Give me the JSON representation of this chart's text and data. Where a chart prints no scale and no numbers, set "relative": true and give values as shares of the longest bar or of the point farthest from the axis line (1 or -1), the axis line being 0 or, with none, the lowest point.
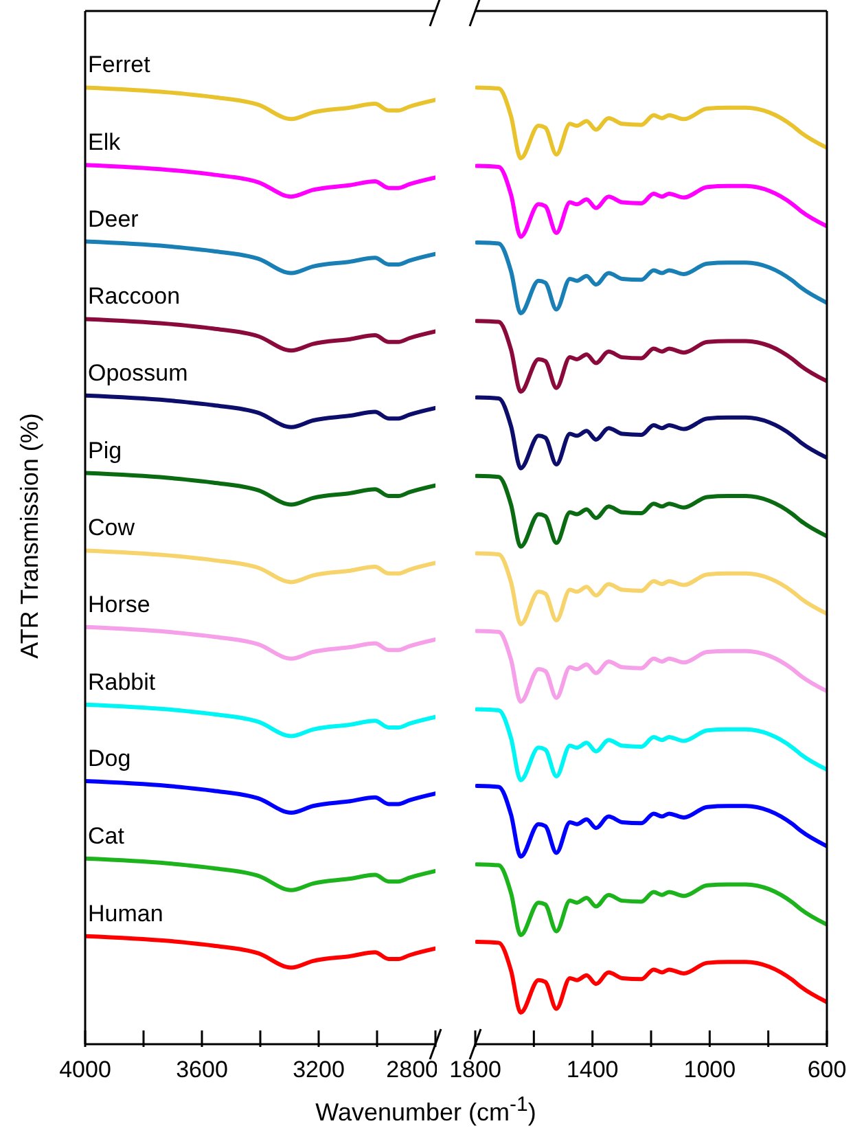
{
  "chart_data": [
    {
      "type": "line",
      "relative": true,
      "tick_labels": "x",
      "ylabel": "ATR Transmission (%)",
      "xlabel": "Wavenumber (cm$^{-1}$)",
      "xlim": [
        4000,
        2800
      ],
      "xticks": [
        4000,
        {
          "value": 3800,
          "label": null
        },
        3600,
        {
          "value": 3400,
          "label": null
        },
        3200,
        {
          "value": 3000,
          "label": null
        },
        2800
      ],
      "x": [
        4000,
        3718,
        3562,
        3407,
        3294,
        3219,
        3092,
        3007,
        2960,
        2927,
        2889,
        2800
      ],
      "series": [
        {
          "name": "Ferret",
          "color": "#e8c32e",
          "values": [
            1.0,
            0.995,
            0.99,
            0.982,
            0.967,
            0.974,
            0.979,
            0.983,
            0.976,
            0.976,
            0.98,
            0.987
          ]
        },
        {
          "name": "Elk",
          "color": "#ff00ff",
          "values": [
            0.919,
            0.914,
            0.909,
            0.901,
            0.886,
            0.893,
            0.898,
            0.902,
            0.895,
            0.895,
            0.899,
            0.906
          ]
        },
        {
          "name": "Deer",
          "color": "#1a7fb5",
          "values": [
            0.839,
            0.834,
            0.829,
            0.821,
            0.806,
            0.813,
            0.818,
            0.822,
            0.815,
            0.815,
            0.819,
            0.826
          ]
        },
        {
          "name": "Raccoon",
          "color": "#8b0a3c",
          "values": [
            0.758,
            0.753,
            0.748,
            0.74,
            0.725,
            0.732,
            0.737,
            0.741,
            0.734,
            0.734,
            0.738,
            0.745
          ]
        },
        {
          "name": "Opossum",
          "color": "#0d0d6b",
          "values": [
            0.678,
            0.673,
            0.668,
            0.66,
            0.645,
            0.652,
            0.657,
            0.661,
            0.654,
            0.654,
            0.658,
            0.665
          ]
        },
        {
          "name": "Pig",
          "color": "#0a6b12",
          "values": [
            0.597,
            0.592,
            0.587,
            0.579,
            0.564,
            0.571,
            0.576,
            0.58,
            0.573,
            0.573,
            0.577,
            0.584
          ]
        },
        {
          "name": "Cow",
          "color": "#f7d36b",
          "values": [
            0.516,
            0.511,
            0.506,
            0.498,
            0.483,
            0.49,
            0.495,
            0.499,
            0.492,
            0.492,
            0.496,
            0.503
          ]
        },
        {
          "name": "Horse",
          "color": "#f5a0e8",
          "values": [
            0.436,
            0.431,
            0.426,
            0.418,
            0.403,
            0.41,
            0.415,
            0.419,
            0.412,
            0.412,
            0.416,
            0.423
          ]
        },
        {
          "name": "Rabbit",
          "color": "#00f5f5",
          "values": [
            0.355,
            0.35,
            0.345,
            0.337,
            0.322,
            0.329,
            0.334,
            0.338,
            0.331,
            0.331,
            0.335,
            0.342
          ]
        },
        {
          "name": "Dog",
          "color": "#0000ff",
          "values": [
            0.275,
            0.27,
            0.265,
            0.257,
            0.242,
            0.249,
            0.254,
            0.258,
            0.251,
            0.251,
            0.255,
            0.262
          ]
        },
        {
          "name": "Cat",
          "color": "#1db31d",
          "values": [
            0.194,
            0.189,
            0.184,
            0.176,
            0.161,
            0.168,
            0.173,
            0.177,
            0.17,
            0.17,
            0.174,
            0.181
          ]
        },
        {
          "name": "Human",
          "color": "#ff0000",
          "values": [
            0.113,
            0.108,
            0.103,
            0.095,
            0.08,
            0.087,
            0.092,
            0.096,
            0.089,
            0.089,
            0.093,
            0.1
          ]
        }
      ]
    },
    {
      "type": "line",
      "relative": true,
      "tick_labels": "x",
      "xlim": [
        1800,
        600
      ],
      "xticks": [
        1800,
        {
          "value": 1600,
          "label": null
        },
        1400,
        {
          "value": 1200,
          "label": null
        },
        1000,
        {
          "value": 800,
          "label": null
        },
        600
      ],
      "x": [
        1795,
        1720,
        1678,
        1645,
        1584,
        1561,
        1523,
        1477,
        1453,
        1420,
        1388,
        1345,
        1298,
        1233,
        1191,
        1163,
        1139,
        1088,
        1008,
        938,
        877,
        797,
        717,
        689,
        600
      ],
      "series": [
        {
          "color": "#e8c32e",
          "values": [
            1.0,
            0.999,
            0.97,
            0.926,
            0.96,
            0.958,
            0.93,
            0.962,
            0.96,
            0.965,
            0.956,
            0.968,
            0.962,
            0.961,
            0.971,
            0.968,
            0.971,
            0.967,
            0.978,
            0.979,
            0.979,
            0.974,
            0.96,
            0.953,
            0.937
          ]
        },
        {
          "color": "#ff00ff",
          "values": [
            0.918,
            0.917,
            0.888,
            0.844,
            0.878,
            0.876,
            0.848,
            0.88,
            0.878,
            0.883,
            0.874,
            0.886,
            0.88,
            0.879,
            0.889,
            0.886,
            0.889,
            0.885,
            0.896,
            0.897,
            0.897,
            0.892,
            0.878,
            0.871,
            0.855
          ]
        },
        {
          "color": "#1a7fb5",
          "values": [
            0.838,
            0.837,
            0.808,
            0.764,
            0.798,
            0.796,
            0.768,
            0.8,
            0.798,
            0.803,
            0.794,
            0.806,
            0.8,
            0.799,
            0.809,
            0.806,
            0.809,
            0.805,
            0.816,
            0.817,
            0.817,
            0.812,
            0.798,
            0.791,
            0.775
          ]
        },
        {
          "color": "#8b0a3c",
          "values": [
            0.756,
            0.755,
            0.726,
            0.682,
            0.716,
            0.714,
            0.686,
            0.718,
            0.716,
            0.721,
            0.712,
            0.724,
            0.718,
            0.717,
            0.727,
            0.724,
            0.727,
            0.723,
            0.734,
            0.735,
            0.735,
            0.73,
            0.716,
            0.709,
            0.693
          ]
        },
        {
          "color": "#0d0d6b",
          "values": [
            0.676,
            0.675,
            0.646,
            0.602,
            0.636,
            0.634,
            0.606,
            0.638,
            0.636,
            0.641,
            0.632,
            0.644,
            0.638,
            0.637,
            0.647,
            0.644,
            0.647,
            0.643,
            0.654,
            0.655,
            0.655,
            0.65,
            0.636,
            0.629,
            0.613
          ]
        },
        {
          "color": "#0a6b12",
          "values": [
            0.594,
            0.593,
            0.564,
            0.52,
            0.554,
            0.552,
            0.524,
            0.556,
            0.554,
            0.559,
            0.55,
            0.562,
            0.556,
            0.555,
            0.565,
            0.562,
            0.565,
            0.561,
            0.572,
            0.573,
            0.573,
            0.568,
            0.554,
            0.547,
            0.531
          ]
        },
        {
          "color": "#f7d36b",
          "values": [
            0.513,
            0.512,
            0.483,
            0.439,
            0.473,
            0.471,
            0.443,
            0.475,
            0.473,
            0.478,
            0.469,
            0.481,
            0.475,
            0.474,
            0.484,
            0.481,
            0.484,
            0.48,
            0.491,
            0.492,
            0.492,
            0.487,
            0.473,
            0.466,
            0.45
          ]
        },
        {
          "color": "#f5a0e8",
          "values": [
            0.432,
            0.431,
            0.402,
            0.358,
            0.392,
            0.39,
            0.362,
            0.394,
            0.392,
            0.397,
            0.388,
            0.4,
            0.394,
            0.393,
            0.403,
            0.4,
            0.403,
            0.399,
            0.41,
            0.411,
            0.411,
            0.406,
            0.392,
            0.385,
            0.369
          ]
        },
        {
          "color": "#00f5f5",
          "values": [
            0.35,
            0.349,
            0.32,
            0.276,
            0.31,
            0.308,
            0.28,
            0.312,
            0.31,
            0.315,
            0.306,
            0.318,
            0.312,
            0.311,
            0.321,
            0.318,
            0.321,
            0.317,
            0.328,
            0.329,
            0.329,
            0.324,
            0.31,
            0.303,
            0.287
          ]
        },
        {
          "color": "#0000ff",
          "values": [
            0.27,
            0.269,
            0.24,
            0.196,
            0.23,
            0.228,
            0.2,
            0.232,
            0.23,
            0.235,
            0.226,
            0.238,
            0.232,
            0.231,
            0.241,
            0.238,
            0.241,
            0.237,
            0.248,
            0.249,
            0.249,
            0.244,
            0.23,
            0.223,
            0.207
          ]
        },
        {
          "color": "#1db31d",
          "values": [
            0.188,
            0.187,
            0.158,
            0.114,
            0.148,
            0.146,
            0.118,
            0.15,
            0.148,
            0.153,
            0.144,
            0.156,
            0.15,
            0.149,
            0.159,
            0.156,
            0.159,
            0.155,
            0.166,
            0.167,
            0.167,
            0.162,
            0.148,
            0.141,
            0.125
          ]
        },
        {
          "color": "#ff0000",
          "values": [
            0.107,
            0.106,
            0.077,
            0.033,
            0.067,
            0.065,
            0.037,
            0.069,
            0.067,
            0.072,
            0.063,
            0.075,
            0.069,
            0.068,
            0.078,
            0.075,
            0.078,
            0.074,
            0.085,
            0.086,
            0.086,
            0.081,
            0.067,
            0.06,
            0.044
          ]
        }
      ]
    }
  ]
}
